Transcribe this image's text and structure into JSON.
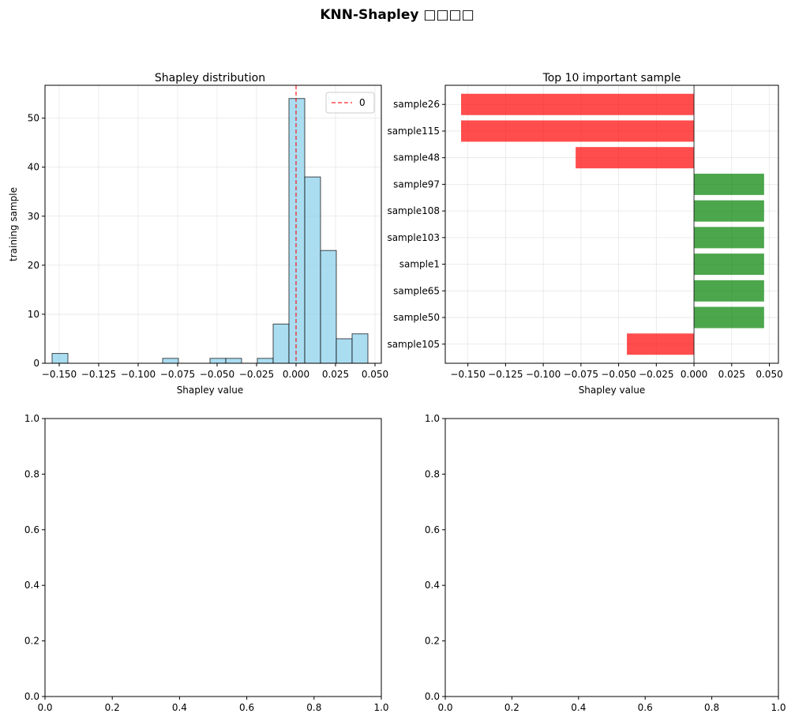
{
  "figure": {
    "suptitle": "KNN-Shapley □□□□"
  },
  "chart_data": [
    {
      "type": "histogram",
      "title": "Shapley distribution",
      "xlabel": "Shapley value",
      "ylabel": "training sample",
      "xlim": [
        -0.159,
        0.054
      ],
      "ylim": [
        0,
        56.7
      ],
      "xticks": [
        -0.15,
        -0.125,
        -0.1,
        -0.075,
        -0.05,
        -0.025,
        0.0,
        0.025,
        0.05
      ],
      "xtick_labels": [
        "−0.150",
        "−0.125",
        "−0.100",
        "−0.075",
        "−0.050",
        "−0.025",
        "0.000",
        "0.025",
        "0.050"
      ],
      "yticks": [
        0,
        10,
        20,
        30,
        40,
        50
      ],
      "ytick_labels": [
        "0",
        "10",
        "20",
        "30",
        "40",
        "50"
      ],
      "bin_edges": [
        -0.1545,
        -0.1445,
        -0.1345,
        -0.1245,
        -0.1145,
        -0.1045,
        -0.0945,
        -0.0845,
        -0.0745,
        -0.0645,
        -0.0545,
        -0.0445,
        -0.0345,
        -0.0245,
        -0.0145,
        -0.0045,
        0.0055,
        0.0155,
        0.0255,
        0.0355,
        0.0455
      ],
      "counts": [
        2,
        0,
        0,
        0,
        0,
        0,
        0,
        1,
        0,
        0,
        1,
        1,
        0,
        1,
        8,
        54,
        38,
        23,
        5,
        6
      ],
      "bar_color": "#87ceeb",
      "bar_edge_color": "#000000",
      "vline": {
        "x": 0,
        "color": "#ff0000",
        "style": "dashed",
        "label": "0"
      },
      "legend": {
        "placement": "top-right",
        "entries": [
          "0"
        ]
      },
      "grid": true
    },
    {
      "type": "barh",
      "title": "Top 10 important sample",
      "xlabel": "Shapley value",
      "ylabel": "",
      "xlim": [
        -0.165,
        0.056
      ],
      "xticks": [
        -0.15,
        -0.125,
        -0.1,
        -0.075,
        -0.05,
        -0.025,
        0.0,
        0.025,
        0.05
      ],
      "xtick_labels": [
        "−0.150",
        "−0.125",
        "−0.100",
        "−0.075",
        "−0.050",
        "−0.025",
        "0.000",
        "0.025",
        "0.050"
      ],
      "categories": [
        "sample26",
        "sample115",
        "sample48",
        "sample97",
        "sample108",
        "sample103",
        "sample1",
        "sample65",
        "sample50",
        "sample105"
      ],
      "values": [
        -0.1545,
        -0.1545,
        -0.0785,
        0.0465,
        0.0465,
        0.0465,
        0.0465,
        0.0465,
        0.0465,
        -0.0445
      ],
      "positive_color": "#008000",
      "negative_color": "#ff0000",
      "vline": {
        "x": 0,
        "color": "#000000"
      },
      "grid": true
    },
    {
      "type": "empty",
      "xlim": [
        0,
        1
      ],
      "ylim": [
        0,
        1
      ],
      "xticks": [
        0,
        0.2,
        0.4,
        0.6,
        0.8,
        1.0
      ],
      "xtick_labels": [
        "0.0",
        "0.2",
        "0.4",
        "0.6",
        "0.8",
        "1.0"
      ],
      "yticks": [
        0,
        0.2,
        0.4,
        0.6,
        0.8,
        1.0
      ],
      "ytick_labels": [
        "0.0",
        "0.2",
        "0.4",
        "0.6",
        "0.8",
        "1.0"
      ]
    },
    {
      "type": "empty",
      "xlim": [
        0,
        1
      ],
      "ylim": [
        0,
        1
      ],
      "xticks": [
        0,
        0.2,
        0.4,
        0.6,
        0.8,
        1.0
      ],
      "xtick_labels": [
        "0.0",
        "0.2",
        "0.4",
        "0.6",
        "0.8",
        "1.0"
      ],
      "yticks": [
        0,
        0.2,
        0.4,
        0.6,
        0.8,
        1.0
      ],
      "ytick_labels": [
        "0.0",
        "0.2",
        "0.4",
        "0.6",
        "0.8",
        "1.0"
      ]
    }
  ]
}
